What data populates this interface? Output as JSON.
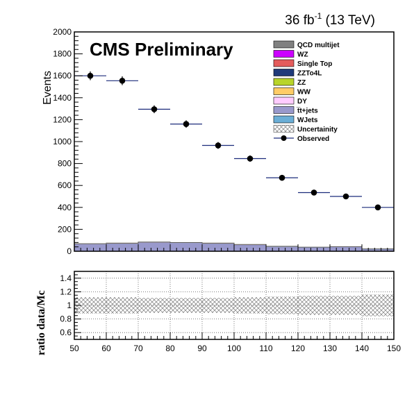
{
  "chart_data": [
    {
      "type": "bar",
      "panel": "main",
      "header": {
        "lumi_value": "36",
        "lumi_unit": "fb",
        "lumi_exp": "-1",
        "energy": "(13 TeV)",
        "label": "CMS Preliminary"
      },
      "ylabel": "Events",
      "xlim": [
        50,
        150
      ],
      "ylim": [
        0,
        2000
      ],
      "y_ticks": [
        "0",
        "200",
        "400",
        "600",
        "800",
        "1000",
        "1200",
        "1400",
        "1600",
        "1800",
        "2000"
      ],
      "x_ticks_major": [
        50,
        60,
        70,
        80,
        90,
        100,
        110,
        120,
        130,
        140,
        150
      ],
      "bin_edges": [
        50,
        60,
        70,
        80,
        90,
        100,
        110,
        120,
        130,
        140,
        150
      ],
      "stack_series": [
        {
          "name": "t̅t+jets",
          "color": "#9999cc",
          "values": [
            65,
            70,
            80,
            75,
            70,
            58,
            42,
            35,
            40,
            20
          ]
        },
        {
          "name": "WJets",
          "color": "#6baed6",
          "values": [
            2,
            2,
            2,
            2,
            2,
            2,
            1,
            1,
            1,
            1
          ]
        },
        {
          "name": "DY",
          "color": "#ffccff",
          "values": [
            1,
            1,
            1,
            1,
            1,
            1,
            1,
            1,
            1,
            0
          ]
        },
        {
          "name": "WW",
          "color": "#ffcc66",
          "values": [
            1,
            1,
            1,
            1,
            1,
            1,
            1,
            0,
            0,
            0
          ]
        }
      ],
      "observed": [
        {
          "x": 55,
          "y": 1600,
          "err": 40
        },
        {
          "x": 65,
          "y": 1555,
          "err": 40
        },
        {
          "x": 75,
          "y": 1295,
          "err": 36
        },
        {
          "x": 85,
          "y": 1160,
          "err": 34
        },
        {
          "x": 95,
          "y": 965,
          "err": 31
        },
        {
          "x": 105,
          "y": 845,
          "err": 29
        },
        {
          "x": 115,
          "y": 670,
          "err": 26
        },
        {
          "x": 125,
          "y": 535,
          "err": 23
        },
        {
          "x": 135,
          "y": 500,
          "err": 22
        },
        {
          "x": 145,
          "y": 400,
          "err": 20
        }
      ],
      "legend": {
        "placement": "top-right",
        "entries": [
          {
            "label": "QCD multijet",
            "color": "#808080",
            "kind": "box"
          },
          {
            "label": "WZ",
            "color": "#cc00ff",
            "kind": "box"
          },
          {
            "label": "Single Top",
            "color": "#e45c5c",
            "kind": "box"
          },
          {
            "label": "ZZTo4L",
            "color": "#1f3a7a",
            "kind": "box"
          },
          {
            "label": "ZZ",
            "color": "#b8d42a",
            "kind": "box"
          },
          {
            "label": "WW",
            "color": "#ffcc66",
            "kind": "box"
          },
          {
            "label": "DY",
            "color": "#ffccff",
            "kind": "box"
          },
          {
            "label": "t̅t+jets",
            "color": "#9999cc",
            "kind": "box"
          },
          {
            "label": "WJets",
            "color": "#6baed6",
            "kind": "box"
          },
          {
            "label": "Uncertainity",
            "color": "#888888",
            "kind": "hatch"
          },
          {
            "label": "Observed",
            "color": "#000000",
            "kind": "marker"
          }
        ]
      }
    },
    {
      "type": "area",
      "panel": "ratio",
      "ylabel": "ratio data/Mc",
      "xlim": [
        50,
        150
      ],
      "ylim": [
        0.5,
        1.5
      ],
      "y_ticks": [
        "0.6",
        "0.8",
        "1",
        "1.2",
        "1.4"
      ],
      "x_ticks": [
        "50",
        "60",
        "70",
        "80",
        "90",
        "100",
        "110",
        "120",
        "130",
        "140",
        "150"
      ],
      "grid": true,
      "bin_edges": [
        50,
        60,
        70,
        80,
        90,
        100,
        110,
        120,
        130,
        140,
        150
      ],
      "uncertainty_band": [
        {
          "low": 0.88,
          "high": 1.12
        },
        {
          "low": 0.88,
          "high": 1.12
        },
        {
          "low": 0.89,
          "high": 1.11
        },
        {
          "low": 0.89,
          "high": 1.11
        },
        {
          "low": 0.89,
          "high": 1.11
        },
        {
          "low": 0.88,
          "high": 1.12
        },
        {
          "low": 0.87,
          "high": 1.13
        },
        {
          "low": 0.86,
          "high": 1.14
        },
        {
          "low": 0.86,
          "high": 1.14
        },
        {
          "low": 0.84,
          "high": 1.16
        }
      ]
    }
  ]
}
